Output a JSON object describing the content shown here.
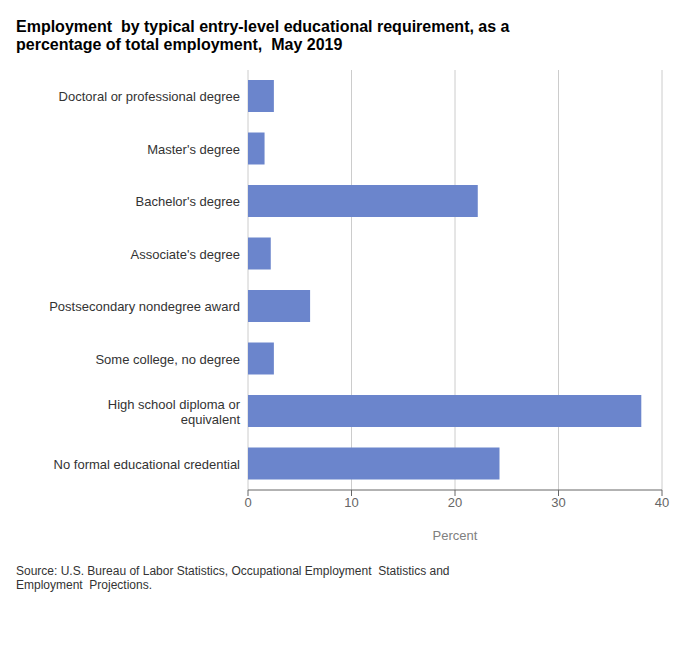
{
  "chart_data": {
    "type": "bar",
    "orientation": "horizontal",
    "title": "Employment  by typical entry-level educational requirement, as a\npercentage of total employment,  May 2019",
    "categories": [
      "No formal educational credential",
      "High school diploma or\n     equivalent",
      "Some college, no degree",
      "Postsecondary nondegree award",
      "Associate's degree",
      "Bachelor's degree",
      "Master's degree",
      "Doctoral or professional degree"
    ],
    "values": [
      24.3,
      38.0,
      2.5,
      6.0,
      2.2,
      22.2,
      1.6,
      2.5
    ],
    "color": "#6b85cc",
    "xlabel": "Percent",
    "xlim": [
      0,
      40
    ],
    "xticks": [
      0,
      10,
      20,
      30,
      40
    ],
    "grid": true,
    "source": "Source: U.S. Bureau of Labor Statistics, Occupational Employment  Statistics and\nEmployment  Projections."
  }
}
